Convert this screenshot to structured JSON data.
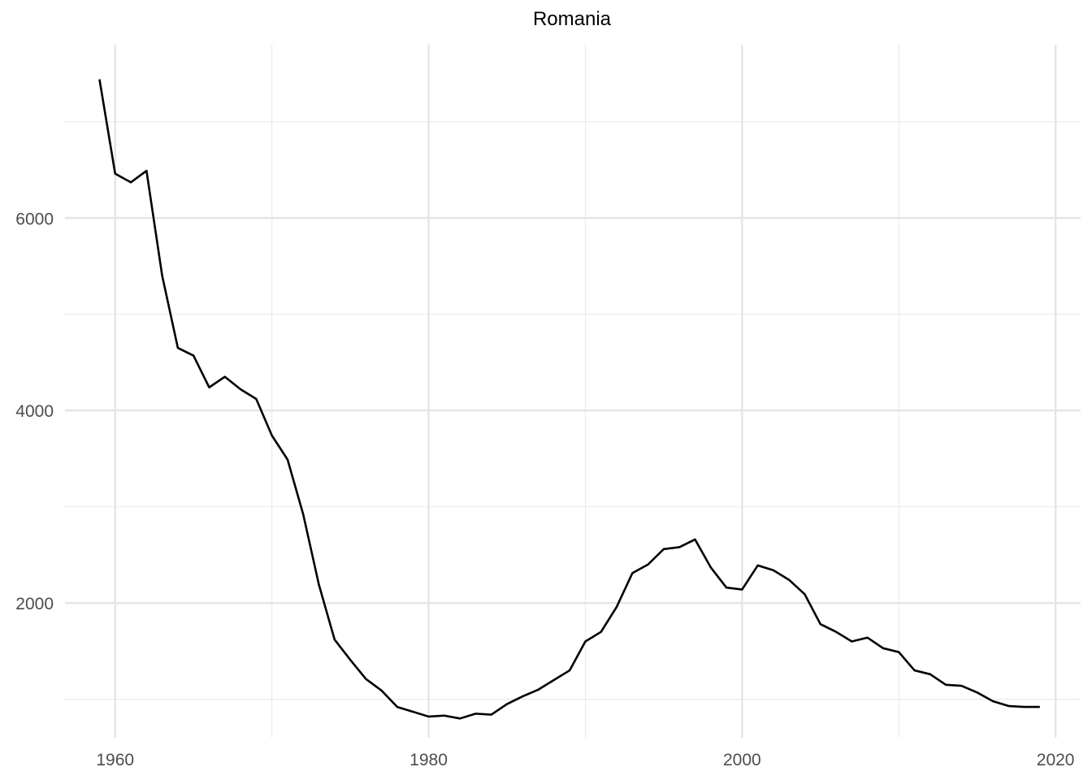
{
  "chart_data": {
    "type": "line",
    "title": "Romania",
    "xlabel": "",
    "ylabel": "",
    "xlim": [
      1956.8,
      2021.6
    ],
    "ylim": [
      600,
      7800
    ],
    "x_ticks": [
      1960,
      1980,
      2000,
      2020
    ],
    "y_ticks": [
      2000,
      4000,
      6000
    ],
    "grid": true,
    "series": [
      {
        "color": "#000000",
        "x": [
          1959,
          1960,
          1961,
          1962,
          1963,
          1964,
          1965,
          1966,
          1967,
          1968,
          1969,
          1970,
          1971,
          1972,
          1973,
          1974,
          1975,
          1976,
          1977,
          1978,
          1979,
          1980,
          1981,
          1982,
          1983,
          1984,
          1985,
          1986,
          1987,
          1988,
          1989,
          1990,
          1991,
          1992,
          1993,
          1994,
          1995,
          1996,
          1997,
          1998,
          1999,
          2000,
          2001,
          2002,
          2003,
          2004,
          2005,
          2006,
          2007,
          2008,
          2009,
          2010,
          2011,
          2012,
          2013,
          2014,
          2015,
          2016,
          2017,
          2018,
          2019
        ],
        "y": [
          7440,
          6460,
          6370,
          6490,
          5400,
          4650,
          4570,
          4240,
          4350,
          4220,
          4120,
          3740,
          3490,
          2920,
          2190,
          1620,
          1410,
          1210,
          1090,
          920,
          870,
          820,
          830,
          800,
          850,
          840,
          950,
          1030,
          1100,
          1200,
          1300,
          1600,
          1700,
          1960,
          2310,
          2400,
          2560,
          2580,
          2660,
          2370,
          2160,
          2140,
          2390,
          2340,
          2240,
          2090,
          1780,
          1700,
          1600,
          1640,
          1530,
          1490,
          1300,
          1260,
          1150,
          1140,
          1070,
          980,
          930,
          920,
          920
        ]
      }
    ]
  }
}
